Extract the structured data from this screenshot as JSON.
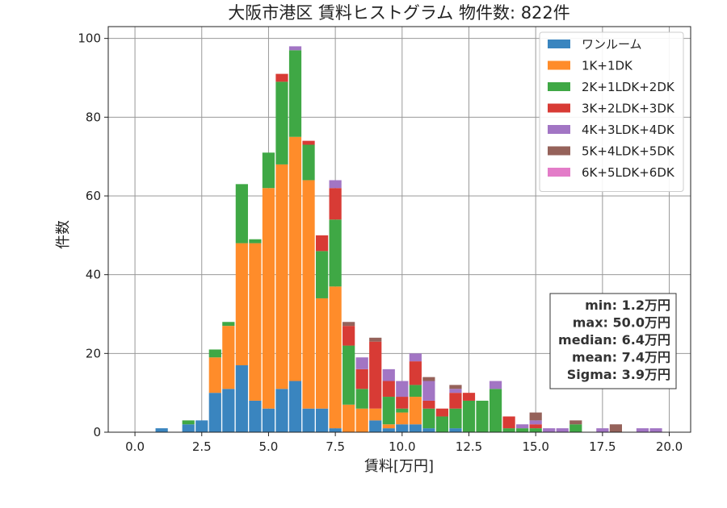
{
  "chart_data": {
    "type": "bar",
    "stacked": true,
    "title": "大阪市港区 賃料ヒストグラム 物件数: 822件",
    "xlabel": "賃料[万円]",
    "ylabel": "件数",
    "xlim": [
      -1.0,
      20.8
    ],
    "ylim": [
      0,
      103
    ],
    "xticks": [
      0.0,
      2.5,
      5.0,
      7.5,
      10.0,
      12.5,
      15.0,
      17.5,
      20.0
    ],
    "xtick_labels": [
      "0.0",
      "2.5",
      "5.0",
      "7.5",
      "10.0",
      "12.5",
      "15.0",
      "17.5",
      "20.0"
    ],
    "yticks": [
      0,
      20,
      40,
      60,
      80,
      100
    ],
    "ytick_labels": [
      "0",
      "20",
      "40",
      "60",
      "80",
      "100"
    ],
    "grid": true,
    "legend_position": "top-right",
    "bin_width": 0.5,
    "bin_centers": [
      1.0,
      1.5,
      2.0,
      2.5,
      3.0,
      3.5,
      4.0,
      4.5,
      5.0,
      5.5,
      6.0,
      6.5,
      7.0,
      7.5,
      8.0,
      8.5,
      9.0,
      9.5,
      10.0,
      10.5,
      11.0,
      11.5,
      12.0,
      12.5,
      13.0,
      13.5,
      14.0,
      14.5,
      15.0,
      15.5,
      16.0,
      16.5,
      17.0,
      17.5,
      18.0,
      18.5,
      19.0,
      19.5,
      20.0
    ],
    "series": [
      {
        "name": "ワンルーム",
        "color": "#3a85bf",
        "values": [
          1,
          0,
          2,
          3,
          10,
          11,
          17,
          8,
          6,
          11,
          13,
          6,
          6,
          1,
          0,
          0,
          3,
          1,
          2,
          2,
          1,
          0,
          1,
          0,
          0,
          0,
          0,
          0,
          0,
          0,
          0,
          0,
          0,
          0,
          0,
          0,
          0,
          0,
          0
        ]
      },
      {
        "name": "1K+1DK",
        "color": "#ff8c2a",
        "values": [
          0,
          0,
          0,
          0,
          9,
          16,
          31,
          40,
          56,
          57,
          62,
          58,
          28,
          36,
          7,
          6,
          3,
          1,
          3,
          7,
          0,
          0,
          0,
          0,
          0,
          0,
          0,
          0,
          0,
          0,
          0,
          0,
          0,
          0,
          0,
          0,
          0,
          0,
          0
        ]
      },
      {
        "name": "2K+1LDK+2DK",
        "color": "#3fa845",
        "values": [
          0,
          0,
          1,
          0,
          2,
          1,
          15,
          1,
          9,
          21,
          22,
          9,
          12,
          17,
          15,
          5,
          0,
          7,
          1,
          3,
          5,
          4,
          5,
          8,
          8,
          11,
          1,
          1,
          1,
          0,
          0,
          2,
          0,
          0,
          0,
          0,
          0,
          0,
          0
        ]
      },
      {
        "name": "3K+2LDK+3DK",
        "color": "#d83b35",
        "values": [
          0,
          0,
          0,
          0,
          0,
          0,
          0,
          0,
          0,
          2,
          0,
          1,
          4,
          8,
          5,
          5,
          17,
          4,
          3,
          6,
          2,
          2,
          4,
          2,
          0,
          0,
          3,
          0,
          1,
          0,
          0,
          0,
          0,
          0,
          0,
          0,
          0,
          0,
          0
        ]
      },
      {
        "name": "4K+3LDK+4DK",
        "color": "#a275c4",
        "values": [
          0,
          0,
          0,
          0,
          0,
          0,
          0,
          0,
          0,
          0,
          1,
          0,
          0,
          2,
          0,
          3,
          0,
          3,
          4,
          2,
          5,
          0,
          1,
          0,
          0,
          2,
          0,
          1,
          1,
          1,
          1,
          0,
          0,
          1,
          0,
          0,
          1,
          1,
          0
        ]
      },
      {
        "name": "5K+4LDK+5DK",
        "color": "#95625a",
        "values": [
          0,
          0,
          0,
          0,
          0,
          0,
          0,
          0,
          0,
          0,
          0,
          0,
          0,
          0,
          1,
          0,
          1,
          0,
          0,
          0,
          1,
          0,
          1,
          0,
          0,
          0,
          0,
          0,
          2,
          0,
          0,
          1,
          0,
          0,
          2,
          0,
          0,
          0,
          0
        ]
      },
      {
        "name": "6K+5LDK+6DK",
        "color": "#e37cc8",
        "values": [
          0,
          0,
          0,
          0,
          0,
          0,
          0,
          0,
          0,
          0,
          0,
          0,
          0,
          0,
          0,
          0,
          0,
          0,
          0,
          0,
          0,
          0,
          0,
          0,
          0,
          0,
          0,
          0,
          0,
          0,
          0,
          0,
          0,
          0,
          0,
          0,
          0,
          0,
          0
        ]
      }
    ],
    "stats": [
      "min: 1.2万円",
      "max: 50.0万円",
      "median: 6.4万円",
      "mean: 7.4万円",
      "Sigma: 3.9万円"
    ]
  }
}
